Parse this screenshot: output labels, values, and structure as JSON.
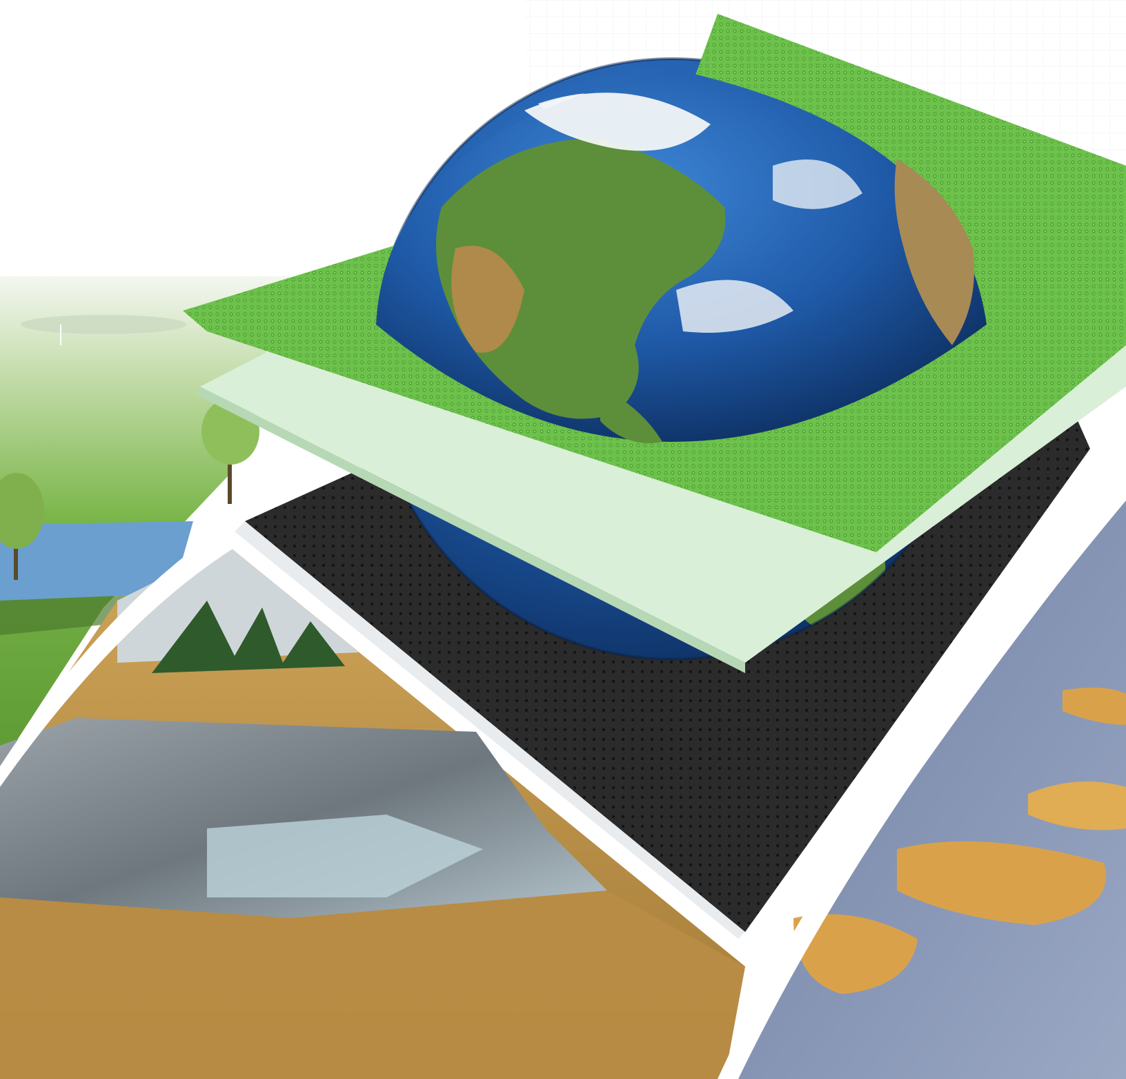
{
  "scene": {
    "description_icons": [
      "globe-icon",
      "green-geonet-layer",
      "geotextile-layer",
      "geomembrane-layer"
    ],
    "colors": {
      "background": "#ffffff",
      "green_net": "#6cc24a",
      "green_net_dark": "#4f9a35",
      "geotextile": "#d9efd8",
      "membrane": "#2b2b2b",
      "ocean": "#1f5aa8",
      "land": "#5d8f3a",
      "desert": "#b08a4a",
      "golf_grass": "#79b548",
      "pond": "#6a9fd0",
      "sand": "#c49a4a",
      "liner": "#8a9096",
      "tailings_blue": "#7f90b0",
      "tailings_orange": "#d9a24a"
    }
  }
}
